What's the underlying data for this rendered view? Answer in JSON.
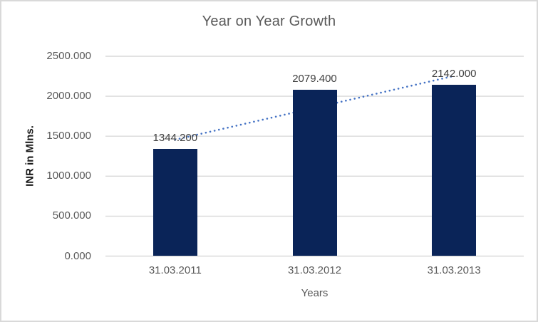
{
  "window": {
    "background": "#ffffff",
    "border_color": "#d9d9d9"
  },
  "chart_data": {
    "type": "bar",
    "title": "Year on Year Growth",
    "categories": [
      "31.03.2011",
      "31.03.2012",
      "31.03.2013"
    ],
    "values": [
      1344.2,
      2079.4,
      2142.0
    ],
    "data_labels": [
      "1344.200",
      "2079.400",
      "2142.000"
    ],
    "xlabel": "Years",
    "ylabel": "INR in Mlns.",
    "ylim": [
      0,
      2500
    ],
    "yticks": [
      2500,
      2000,
      1500,
      1000,
      500,
      0
    ],
    "ytick_labels": [
      "2500.000",
      "2000.000",
      "1500.000",
      "1000.000",
      "500.000",
      "0.000"
    ],
    "grid": true,
    "legend_position": "none",
    "trendline": {
      "style": "dotted",
      "fit": "linear"
    },
    "colors": {
      "bar": "#0a2458",
      "trendline": "#4472c4",
      "gridline": "#d9d9d9",
      "title_text": "#595959",
      "tick_text": "#595959",
      "data_label_text": "#404040",
      "axis_title_text": "#595959",
      "ylabel_text": "#1a1a1a",
      "border": "#d9d9d9"
    }
  }
}
